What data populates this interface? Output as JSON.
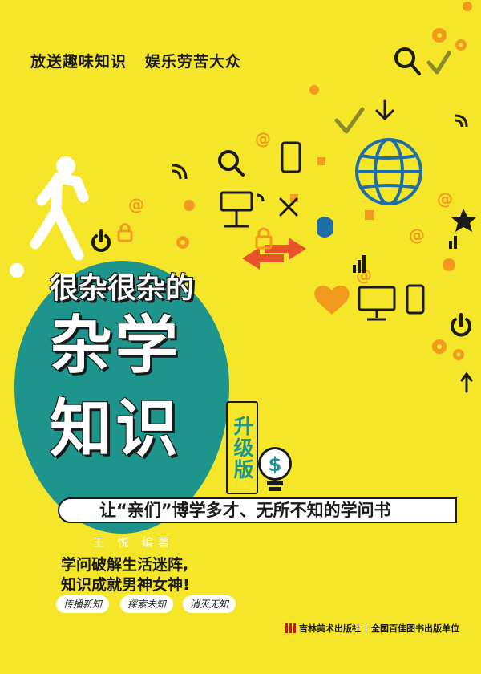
{
  "tagline": "放送趣味知识   娱乐劳苦大众",
  "title": {
    "line1": "很杂很杂的",
    "line2": "杂学",
    "line3": "知识",
    "edition": "升级版"
  },
  "subtitle": "让“亲们”博学多才、无所不知的学问书",
  "author": "王 悦 编著",
  "slogan": {
    "line1": "学问破解生活迷阵,",
    "line2": "知识成就男神女神!"
  },
  "badges": [
    "传播新知",
    "探索未知",
    "消灭无知"
  ],
  "publisher": {
    "name": "吉林美术出版社",
    "partner": "全国百佳图书出版单位"
  },
  "colors": {
    "background": "#f6e62a",
    "teal": "#1e958c",
    "orange": "#f29a1e",
    "dark": "#1a1a1a",
    "white": "#ffffff"
  },
  "icons": [
    "running-figure-icon",
    "globe-icon",
    "wifi-icon",
    "gear-icon",
    "magnifier-icon",
    "check-icon",
    "lightbulb-dollar-icon",
    "heart-icon",
    "arrows-icon",
    "star-icon",
    "phone-icon",
    "mouse-icon",
    "monitor-icon",
    "at-sign-icon",
    "lock-icon",
    "power-icon"
  ]
}
